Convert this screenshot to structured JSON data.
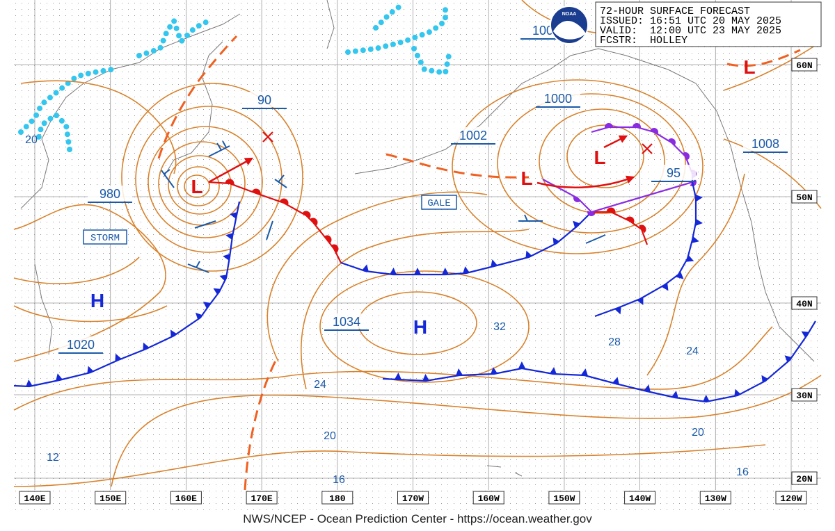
{
  "header": {
    "title": "72-HOUR SURFACE FORECAST",
    "issued": "ISSUED: 16:51 UTC 20 MAY 2025",
    "valid": "VALID:  12:00 UTC 23 MAY 2025",
    "forecaster": "FCSTR:  HOLLEY"
  },
  "logo": "NOAA",
  "footer": "NWS/NCEP - Ocean Prediction Center - https://ocean.weather.gov",
  "longitudes": [
    "140E",
    "150E",
    "160E",
    "170E",
    "180",
    "170W",
    "160W",
    "150W",
    "140W",
    "130W",
    "120W"
  ],
  "latitudes": [
    "60N",
    "50N",
    "40N",
    "30N",
    "20N"
  ],
  "isobar_labels": [
    "100",
    "90",
    "980",
    "1000",
    "1002",
    "1008",
    "95",
    "1034",
    "1020",
    "20",
    "12",
    "24",
    "20",
    "16",
    "32",
    "28",
    "24",
    "20",
    "16"
  ],
  "warnings": [
    "STORM",
    "GALE"
  ],
  "highs": [
    "H",
    "H"
  ],
  "lows": [
    "L",
    "L",
    "L",
    "L"
  ]
}
